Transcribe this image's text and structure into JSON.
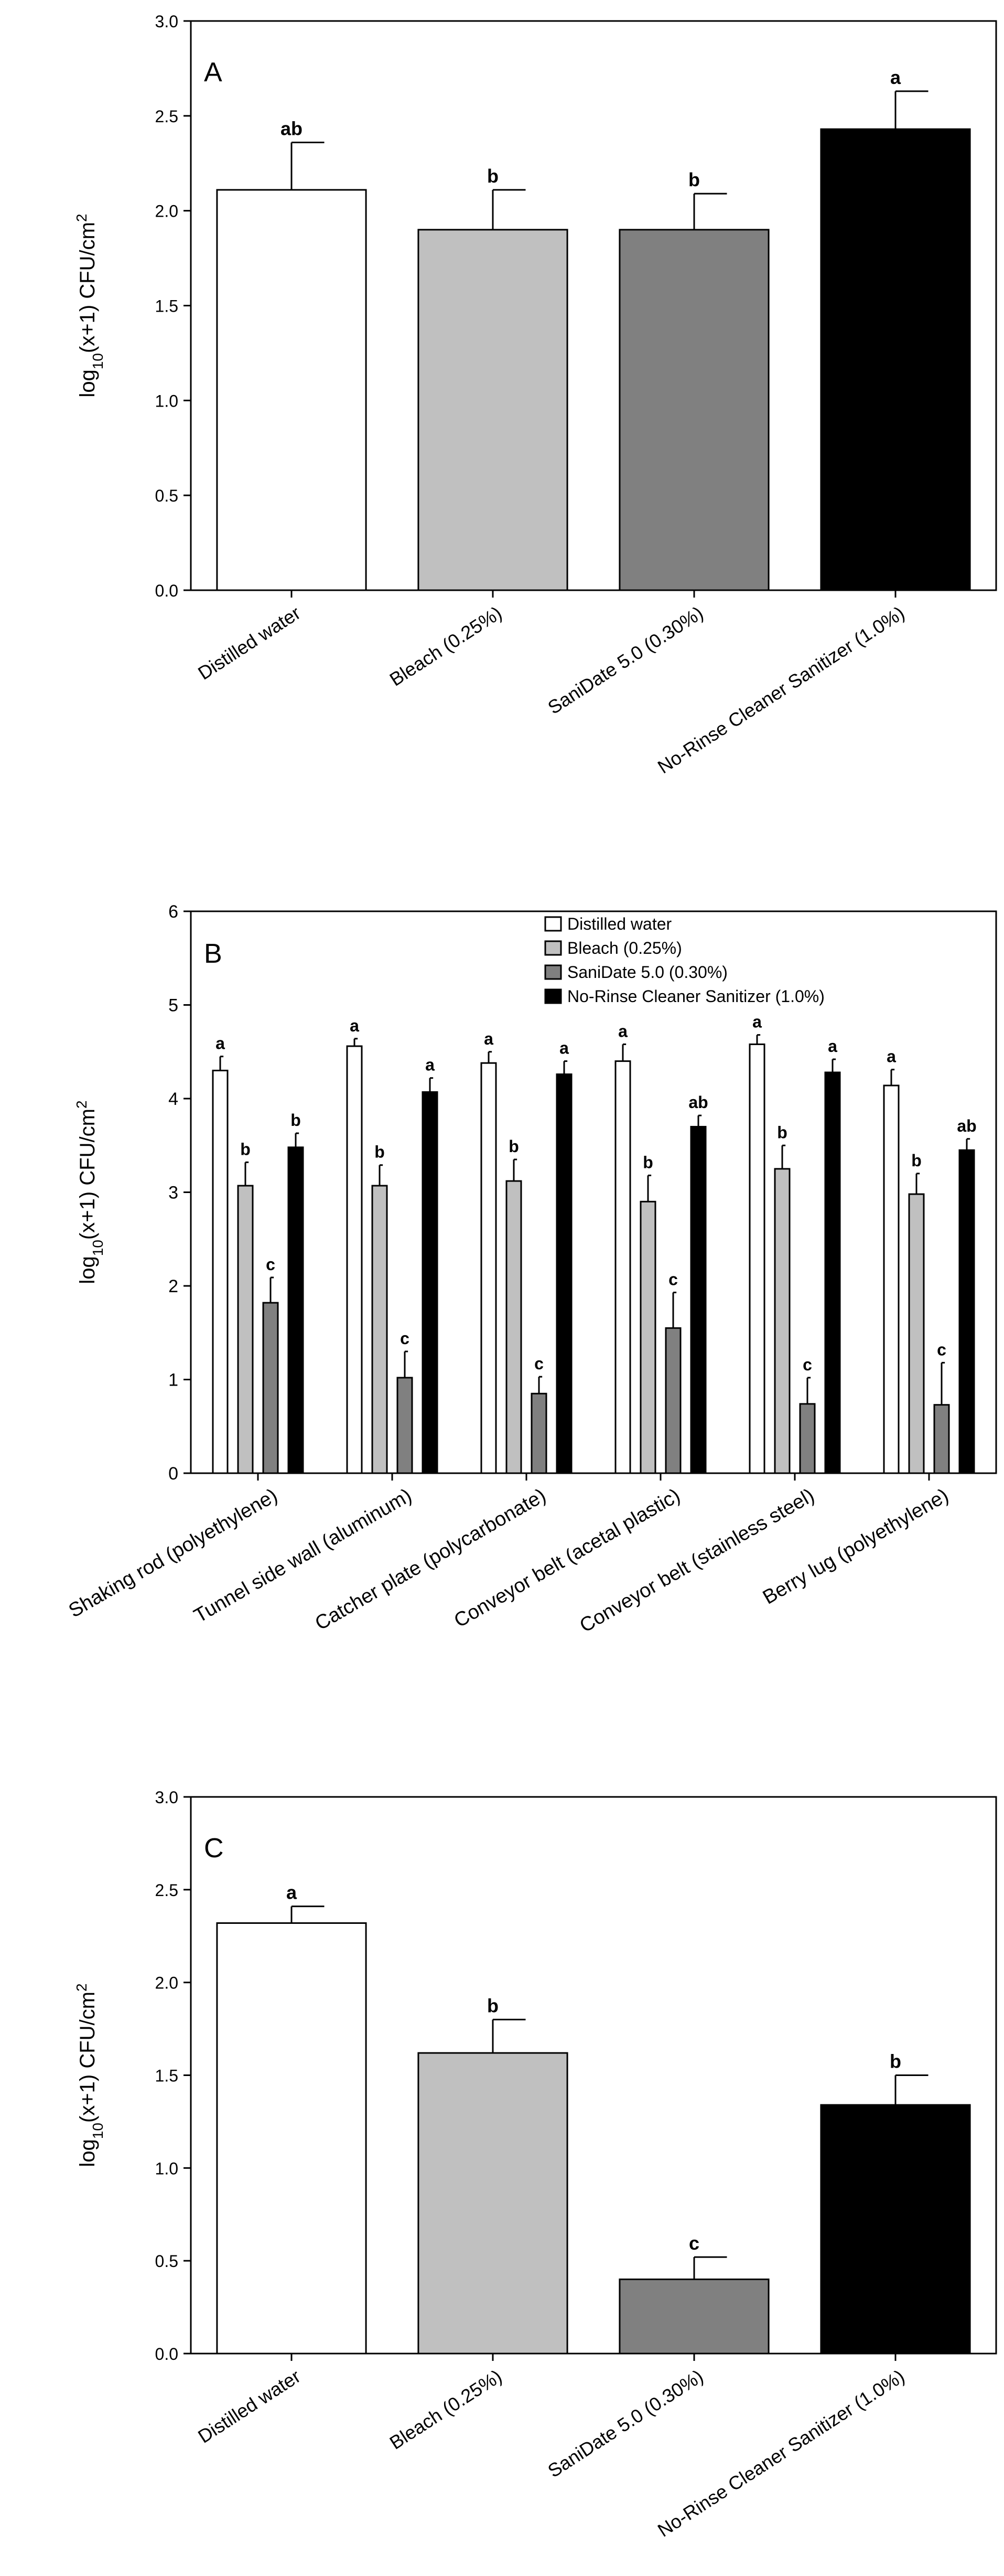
{
  "colors": {
    "distilled": "#ffffff",
    "bleach": "#c0c0c0",
    "sanidate": "#808080",
    "norinse": "#000000"
  },
  "chart_data": [
    {
      "type": "bar",
      "panel_label": "A",
      "ylabel": {
        "prefix": "log",
        "sub": "10",
        "mid": "(x+1) CFU/cm",
        "sup": "2"
      },
      "ylim": [
        0,
        3.0
      ],
      "yticks": [
        "0.0",
        "0.5",
        "1.0",
        "1.5",
        "2.0",
        "2.5",
        "3.0"
      ],
      "categories": [
        "Distilled water",
        "Bleach (0.25%)",
        "SaniDate 5.0 (0.30%)",
        "No-Rinse Cleaner Sanitizer (1.0%)"
      ],
      "values": [
        2.11,
        1.9,
        1.9,
        2.43
      ],
      "errors": [
        0.25,
        0.21,
        0.19,
        0.2
      ],
      "letters": [
        "ab",
        "b",
        "b",
        "a"
      ],
      "bar_colors": [
        "distilled",
        "bleach",
        "sanidate",
        "norinse"
      ]
    },
    {
      "type": "bar",
      "panel_label": "B",
      "ylabel": {
        "prefix": "log",
        "sub": "10",
        "mid": "(x+1) CFU/cm",
        "sup": "2"
      },
      "ylim": [
        0,
        6
      ],
      "yticks": [
        "0",
        "1",
        "2",
        "3",
        "4",
        "5",
        "6"
      ],
      "categories": [
        "Shaking rod (polyethylene)",
        "Tunnel side wall (aluminum)",
        "Catcher plate (polycarbonate)",
        "Conveyor belt (acetal plastic)",
        "Conveyor belt (stainless steel)",
        "Berry lug (polyethylene)"
      ],
      "legend": [
        "Distilled water",
        "Bleach (0.25%)",
        "SaniDate 5.0 (0.30%)",
        "No-Rinse Cleaner Sanitizer  (1.0%)"
      ],
      "series": [
        {
          "name": "Distilled water",
          "color": "distilled",
          "values": [
            4.3,
            4.56,
            4.38,
            4.4,
            4.58,
            4.14
          ],
          "errors": [
            0.15,
            0.08,
            0.12,
            0.18,
            0.1,
            0.17
          ],
          "letters": [
            "a",
            "a",
            "a",
            "a",
            "a",
            "a"
          ]
        },
        {
          "name": "Bleach (0.25%)",
          "color": "bleach",
          "values": [
            3.07,
            3.07,
            3.12,
            2.9,
            3.25,
            2.98
          ],
          "errors": [
            0.25,
            0.22,
            0.23,
            0.28,
            0.25,
            0.22
          ],
          "letters": [
            "b",
            "b",
            "b",
            "b",
            "b",
            "b"
          ]
        },
        {
          "name": "SaniDate 5.0 (0.30%)",
          "color": "sanidate",
          "values": [
            1.82,
            1.02,
            0.85,
            1.55,
            0.74,
            0.73
          ],
          "errors": [
            0.27,
            0.28,
            0.18,
            0.38,
            0.28,
            0.45
          ],
          "letters": [
            "c",
            "c",
            "c",
            "c",
            "c",
            "c"
          ]
        },
        {
          "name": "No-Rinse Cleaner Sanitizer (1.0%)",
          "color": "norinse",
          "values": [
            3.48,
            4.07,
            4.26,
            3.7,
            4.28,
            3.45
          ],
          "errors": [
            0.15,
            0.15,
            0.14,
            0.12,
            0.14,
            0.12
          ],
          "letters": [
            "b",
            "a",
            "a",
            "ab",
            "a",
            "ab"
          ]
        }
      ]
    },
    {
      "type": "bar",
      "panel_label": "C",
      "ylabel": {
        "prefix": "log",
        "sub": "10",
        "mid": "(x+1) CFU/cm",
        "sup": "2"
      },
      "ylim": [
        0,
        3.0
      ],
      "yticks": [
        "0.0",
        "0.5",
        "1.0",
        "1.5",
        "2.0",
        "2.5",
        "3.0"
      ],
      "categories": [
        "Distilled water",
        "Bleach (0.25%)",
        "SaniDate 5.0 (0.30%)",
        "No-Rinse Cleaner Sanitizer (1.0%)"
      ],
      "values": [
        2.32,
        1.62,
        0.4,
        1.34
      ],
      "errors": [
        0.09,
        0.18,
        0.12,
        0.16
      ],
      "letters": [
        "a",
        "b",
        "c",
        "b"
      ],
      "bar_colors": [
        "distilled",
        "bleach",
        "sanidate",
        "norinse"
      ]
    }
  ]
}
